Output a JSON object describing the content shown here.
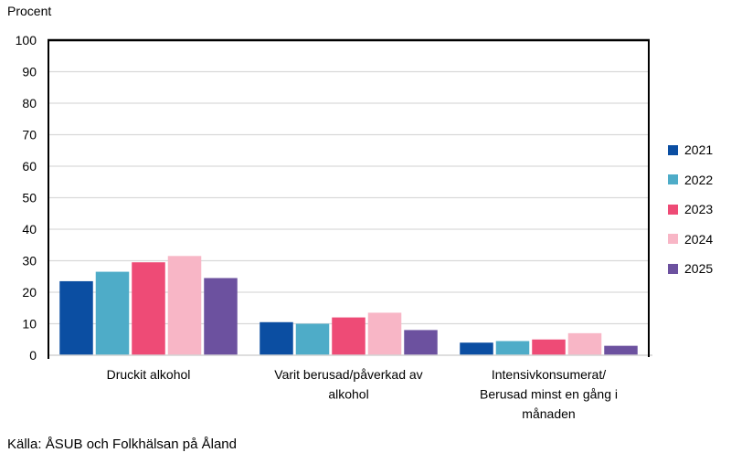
{
  "chart_data": {
    "type": "bar",
    "title": "",
    "ylabel": "Procent",
    "xlabel": "",
    "categories": [
      "Druckit alkohol",
      "Varit berusad/påverkad av alkohol",
      "Intensivkonsumerat/ Berusad minst en gång i månaden"
    ],
    "category_lines": [
      [
        "Druckit alkohol"
      ],
      [
        "Varit berusad/påverkad av",
        "alkohol"
      ],
      [
        "Intensivkonsumerat/",
        "Berusad minst en gång i",
        "månaden"
      ]
    ],
    "series": [
      {
        "name": "2021",
        "color": "#0B4EA2",
        "values": [
          23.5,
          10.5,
          4
        ]
      },
      {
        "name": "2022",
        "color": "#4EACC8",
        "values": [
          26.5,
          10,
          4.5
        ]
      },
      {
        "name": "2023",
        "color": "#EE4B76",
        "values": [
          29.5,
          12,
          5
        ]
      },
      {
        "name": "2024",
        "color": "#F8B6C6",
        "values": [
          31.5,
          13.5,
          7
        ]
      },
      {
        "name": "2025",
        "color": "#6C519F",
        "values": [
          24.5,
          8,
          3
        ]
      }
    ],
    "ylim": [
      0,
      100
    ],
    "ytick_step": 10,
    "grid": true,
    "legend_position": "right",
    "colors": {
      "gridline": "#D9D9D9",
      "axis_line": "#D3D3D3",
      "plot_border": "#000000",
      "text": "#000000"
    }
  },
  "footer": {
    "source": "Källa: ÅSUB och Folkhälsan på Åland"
  }
}
